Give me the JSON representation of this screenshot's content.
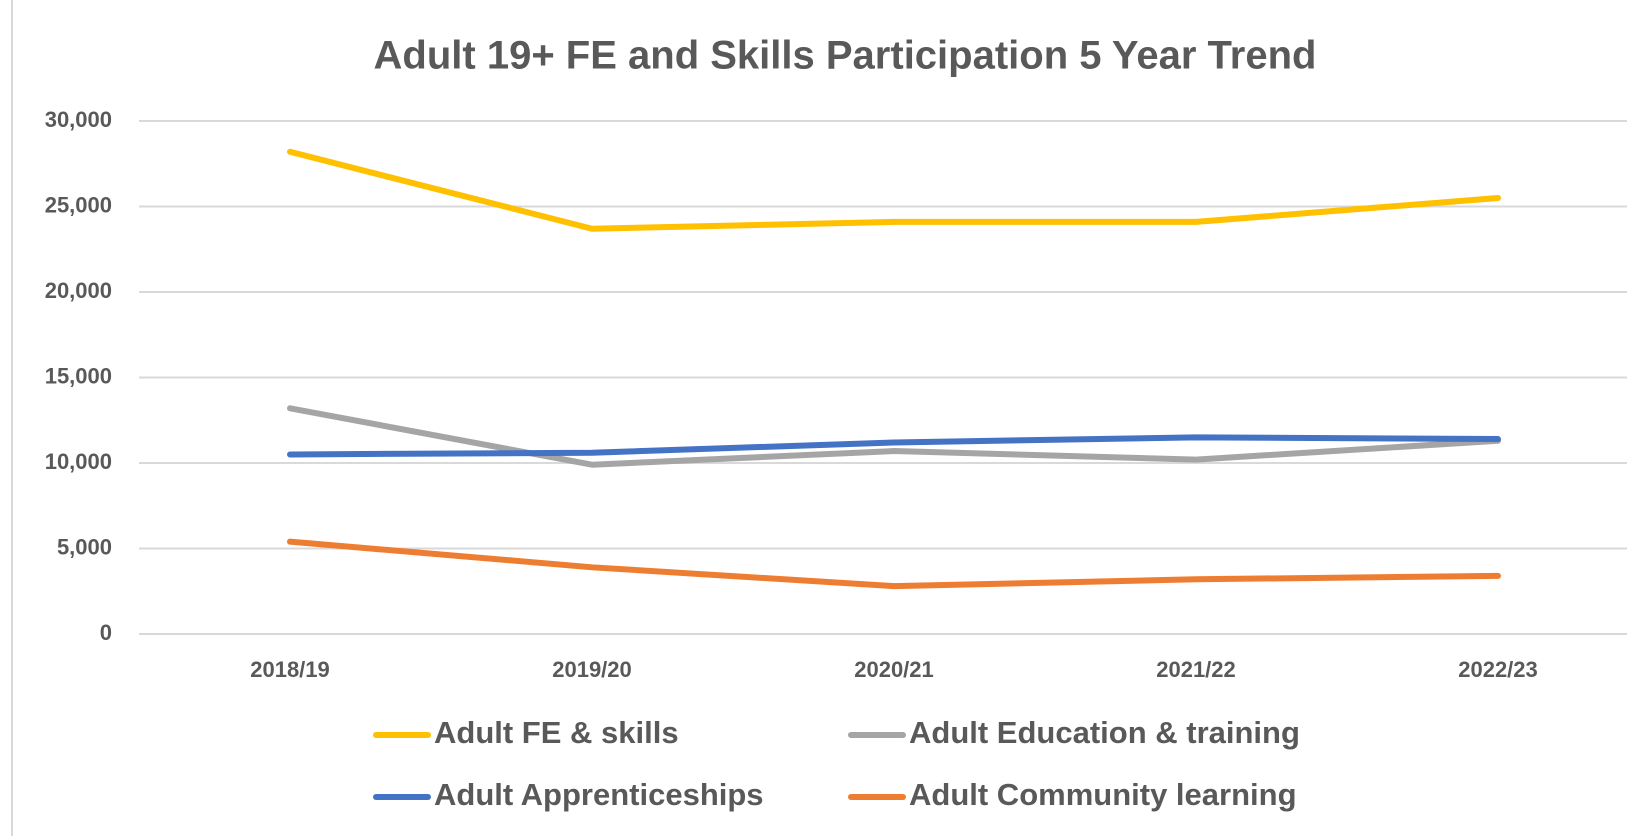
{
  "chart_data": {
    "type": "line",
    "title": "Adult 19+ FE and Skills Participation 5 Year Trend",
    "categories": [
      "2018/19",
      "2019/20",
      "2020/21",
      "2021/22",
      "2022/23"
    ],
    "series": [
      {
        "name": "Adult FE & skills",
        "color": "#ffc000",
        "values": [
          28200,
          23700,
          24100,
          24100,
          25500
        ]
      },
      {
        "name": "Adult Education & training",
        "color": "#a5a5a5",
        "values": [
          13200,
          9900,
          10700,
          10200,
          11300
        ]
      },
      {
        "name": "Adult Apprenticeships",
        "color": "#4472c4",
        "values": [
          10500,
          10600,
          11200,
          11500,
          11400
        ]
      },
      {
        "name": "Adult Community learning",
        "color": "#ed7d31",
        "values": [
          5400,
          3900,
          2800,
          3200,
          3400
        ]
      }
    ],
    "ylim": [
      0,
      30000
    ],
    "yticks": [
      0,
      {
        "value": 5000,
        "label": "5,000"
      },
      {
        "value": 10000,
        "label": "10,000"
      },
      {
        "value": 15000,
        "label": "15,000"
      },
      {
        "value": 20000,
        "label": "20,000"
      },
      {
        "value": 25000,
        "label": "25,000"
      },
      {
        "value": 30000,
        "label": "30,000"
      }
    ],
    "grid": true,
    "legend": "bottom"
  }
}
